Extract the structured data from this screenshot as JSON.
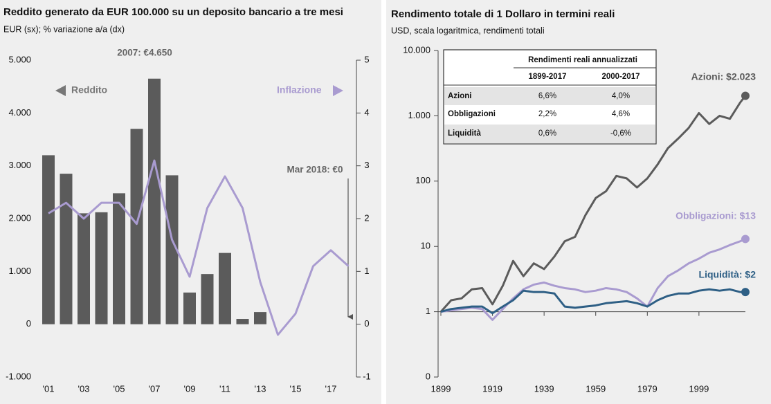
{
  "chart_data": [
    {
      "type": "combo",
      "title": "Reddito generato da EUR 100.000 su un deposito bancario a tre mesi",
      "subtitle": "EUR (sx); % variazione a/a (dx)",
      "categories": [
        "'01",
        null,
        "'03",
        null,
        "'05",
        null,
        "'07",
        null,
        "'09",
        null,
        "'11",
        null,
        "'13",
        null,
        "'15",
        null,
        "'17",
        null
      ],
      "series": [
        {
          "name": "Reddito",
          "type": "bar",
          "color": "#5b5b5b",
          "values": [
            3200,
            2850,
            2100,
            2120,
            2480,
            3700,
            4650,
            2820,
            600,
            950,
            1350,
            100,
            230,
            0,
            0,
            0,
            0,
            0
          ]
        },
        {
          "name": "Inflazione",
          "type": "line",
          "axis": "y2",
          "color": "#a99bd0",
          "values": [
            2.1,
            2.3,
            2.0,
            2.3,
            2.3,
            1.9,
            3.1,
            1.6,
            0.9,
            2.2,
            2.8,
            2.2,
            0.8,
            -0.2,
            0.2,
            1.1,
            1.4,
            1.1
          ]
        }
      ],
      "ylim": [
        -1000,
        5000
      ],
      "yticks": [
        {
          "value": -1000,
          "label": "-1.000"
        },
        0,
        {
          "value": 1000,
          "label": "1.000"
        },
        {
          "value": 2000,
          "label": "2.000"
        },
        {
          "value": 3000,
          "label": "3.000"
        },
        {
          "value": 4000,
          "label": "4.000"
        },
        {
          "value": 5000,
          "label": "5.000"
        }
      ],
      "y2lim": [
        -1,
        5
      ],
      "y2ticks": [
        -1,
        0,
        1,
        2,
        3,
        4,
        5
      ],
      "annotations": [
        "2007: €4.650",
        "Mar 2018: €0"
      ]
    },
    {
      "type": "line",
      "title": "Rendimento totale di 1 Dollaro in termini reali",
      "subtitle": "USD, scala logaritmica, rendimenti totali",
      "log_scale": true,
      "x": [
        1899,
        1903,
        1907,
        1911,
        1915,
        1919,
        1923,
        1927,
        1931,
        1935,
        1939,
        1943,
        1947,
        1951,
        1955,
        1959,
        1963,
        1967,
        1971,
        1975,
        1979,
        1983,
        1987,
        1991,
        1995,
        1999,
        2003,
        2007,
        2011,
        2015,
        2017
      ],
      "series": [
        {
          "name": "Azioni",
          "color": "#5b5b5b",
          "end_label": "Azioni: $2.023",
          "values": [
            1,
            1.5,
            1.6,
            2.2,
            2.3,
            1.3,
            2.5,
            6,
            3.5,
            5.5,
            4.5,
            7,
            12,
            14,
            30,
            55,
            70,
            120,
            110,
            80,
            110,
            180,
            320,
            450,
            650,
            1100,
            750,
            1000,
            900,
            1600,
            2023
          ]
        },
        {
          "name": "Obbligazioni",
          "color": "#a99bd0",
          "end_label": "Obbligazioni: $13",
          "values": [
            1,
            1.05,
            1.1,
            1.15,
            1.1,
            0.75,
            1.1,
            1.6,
            2.2,
            2.6,
            2.8,
            2.5,
            2.3,
            2.2,
            2.0,
            2.1,
            2.3,
            2.2,
            2.0,
            1.6,
            1.2,
            2.3,
            3.5,
            4.3,
            5.5,
            6.5,
            8,
            9,
            10.5,
            12,
            13
          ]
        },
        {
          "name": "Liquidità",
          "color": "#2e5f85",
          "end_label": "Liquidità: $2",
          "values": [
            1,
            1.1,
            1.15,
            1.2,
            1.2,
            0.95,
            1.2,
            1.5,
            2.1,
            2.0,
            2.0,
            1.9,
            1.2,
            1.15,
            1.2,
            1.25,
            1.35,
            1.4,
            1.45,
            1.35,
            1.2,
            1.5,
            1.75,
            1.9,
            1.9,
            2.1,
            2.2,
            2.1,
            2.2,
            2.0,
            2.0
          ]
        }
      ],
      "xlim": [
        1899,
        2017
      ],
      "xticks": [
        1899,
        1919,
        1939,
        1959,
        1979,
        1999
      ],
      "ylim": [
        0.1,
        10000
      ],
      "yticks": [
        {
          "value": 0.1,
          "label": "0"
        },
        1,
        10,
        100,
        {
          "value": 1000,
          "label": "1.000"
        },
        {
          "value": 10000,
          "label": "10.000"
        }
      ],
      "table": {
        "title": "Rendimenti reali annualizzati",
        "columns": [
          "1899-2017",
          "2000-2017"
        ],
        "rows": [
          [
            "Azioni",
            "6,6%",
            "4,0%"
          ],
          [
            "Obbligazioni",
            "2,2%",
            "4,6%"
          ],
          [
            "Liquidità",
            "0,6%",
            "-0,6%"
          ]
        ]
      }
    }
  ]
}
